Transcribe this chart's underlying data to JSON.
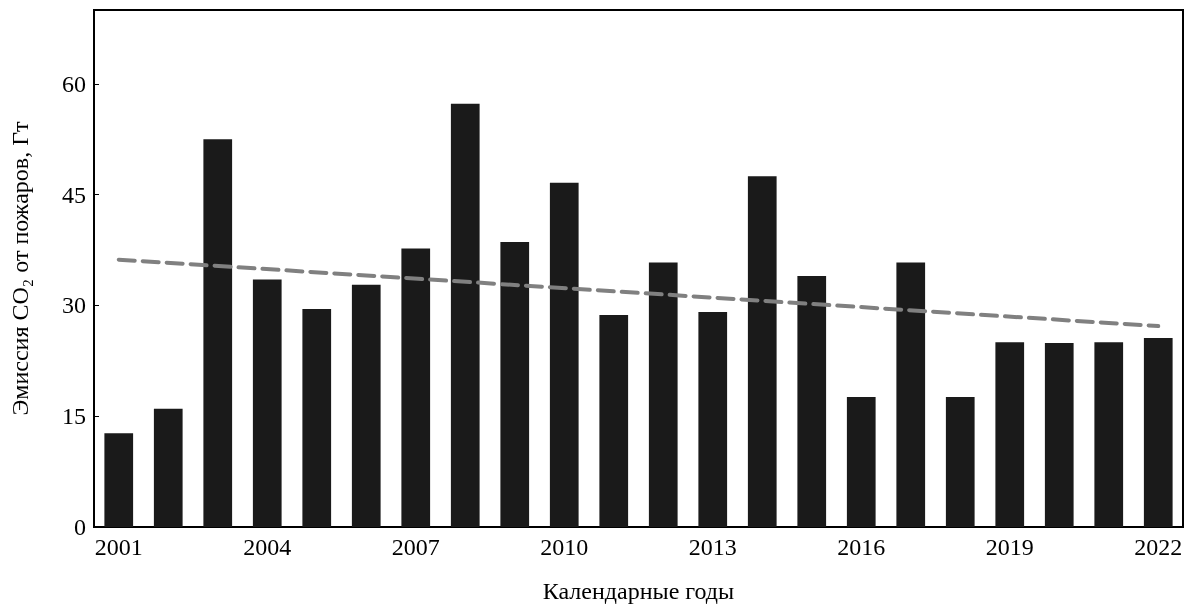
{
  "chart_data": {
    "type": "bar",
    "xlabel": "Календарные годы",
    "ylabel": "Эмиссия CO₂ от пожаров, Гт",
    "categories": [
      "2001",
      null,
      null,
      "2004",
      null,
      null,
      "2007",
      null,
      null,
      "2010",
      null,
      null,
      "2013",
      null,
      null,
      "2016",
      null,
      null,
      "2019",
      null,
      null,
      "2022"
    ],
    "series": [
      {
        "color": "#1a1a1a",
        "values": [
          12.7,
          16.0,
          52.5,
          33.5,
          29.5,
          32.8,
          37.7,
          57.3,
          38.6,
          46.6,
          28.7,
          35.8,
          29.1,
          47.5,
          34.0,
          17.6,
          35.8,
          17.6,
          25.0,
          24.9,
          25.0,
          25.6
        ]
      },
      {
        "type": "line",
        "color": "#808080",
        "line_style": "dashed",
        "marker": "none",
        "values": [
          36.2,
          null,
          null,
          null,
          null,
          null,
          null,
          null,
          null,
          null,
          null,
          null,
          null,
          null,
          null,
          null,
          null,
          null,
          null,
          null,
          null,
          27.2
        ]
      }
    ],
    "ylim": [
      0,
      70
    ],
    "yticks": [
      0,
      15,
      30,
      45,
      60
    ],
    "grid": false
  }
}
